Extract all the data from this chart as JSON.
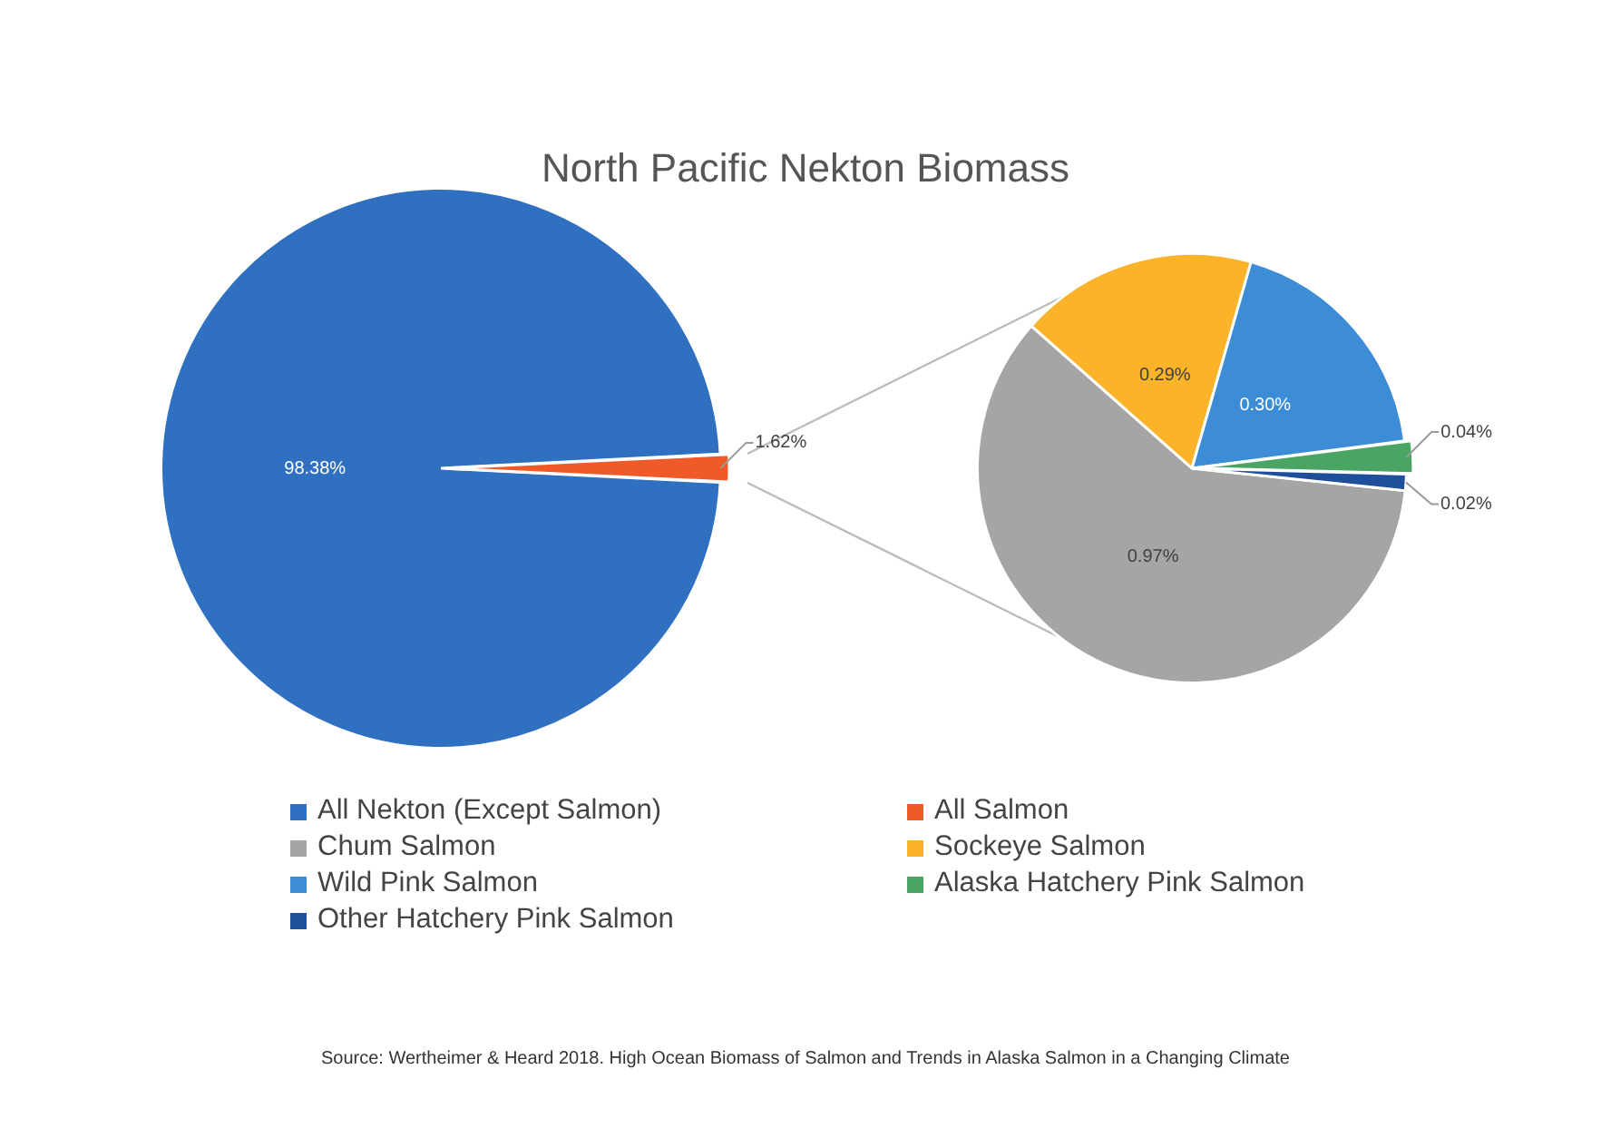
{
  "chart_data": [
    {
      "type": "pie",
      "title": "North Pacific Nekton Biomass",
      "categories": [
        "All Nekton (Except Salmon)",
        "All Salmon"
      ],
      "values": [
        98.38,
        1.62
      ],
      "colors": [
        "#2f70c0",
        "#ef5a28"
      ],
      "value_labels": [
        "98.38%",
        "1.62%"
      ],
      "legend": "bottom",
      "annotations": [
        "Source: Wertheimer & Heard 2018. High Ocean Biomass of Salmon and Trends in Alaska Salmon in a Changing Climate"
      ]
    },
    {
      "type": "pie",
      "categories": [
        "Chum Salmon",
        "Sockeye Salmon",
        "Wild Pink Salmon",
        "Alaska Hatchery Pink Salmon",
        "Other Hatchery Pink Salmon"
      ],
      "values": [
        0.97,
        0.29,
        0.3,
        0.04,
        0.02
      ],
      "colors": [
        "#a5a5a5",
        "#fbb42a",
        "#3c8dd6",
        "#4aa564",
        "#1f4e9a"
      ],
      "value_labels": [
        "0.97%",
        "0.29%",
        "0.30%",
        "0.04%",
        "0.02%"
      ],
      "legend": "bottom"
    }
  ]
}
